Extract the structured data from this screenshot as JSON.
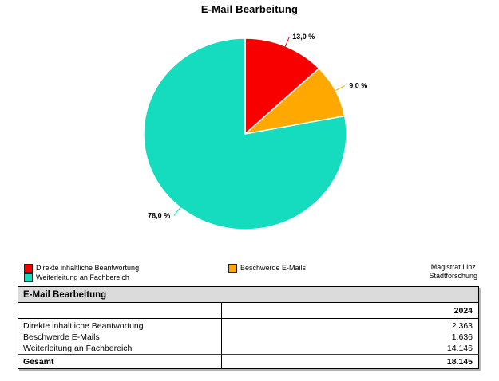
{
  "chart_data": {
    "type": "pie",
    "title": "E-Mail Bearbeitung",
    "start_angle_deg": -90,
    "direction": "clockwise",
    "legend_position": "bottom",
    "slices": [
      {
        "name": "Direkte inhaltliche Beantwortung",
        "value": 13.0,
        "label": "13,0 %",
        "color": "#f90000"
      },
      {
        "name": "Beschwerde E-Mails",
        "value": 9.0,
        "label": "9,0 %",
        "color": "#ffa800"
      },
      {
        "name": "Weiterleitung an Fachbereich",
        "value": 78.0,
        "label": "78,0 %",
        "color": "#15dcbe"
      }
    ]
  },
  "legend": {
    "items": [
      {
        "label": "Direkte inhaltliche Beantwortung",
        "color": "#f90000"
      },
      {
        "label": "Weiterleitung an Fachbereich",
        "color": "#15dcbe"
      },
      {
        "label": "Beschwerde E-Mails",
        "color": "#ffa800"
      }
    ]
  },
  "source": {
    "line1": "Magistrat Linz",
    "line2": "Stadtforschung"
  },
  "table": {
    "title": "E-Mail Bearbeitung",
    "year_header": "2024",
    "rows": [
      {
        "label": "Direkte inhaltliche Beantwortung",
        "value": "2.363"
      },
      {
        "label": "Beschwerde E-Mails",
        "value": "1.636"
      },
      {
        "label": "Weiterleitung an Fachbereich",
        "value": "14.146"
      }
    ],
    "total": {
      "label": "Gesamt",
      "value": "18.145"
    }
  }
}
